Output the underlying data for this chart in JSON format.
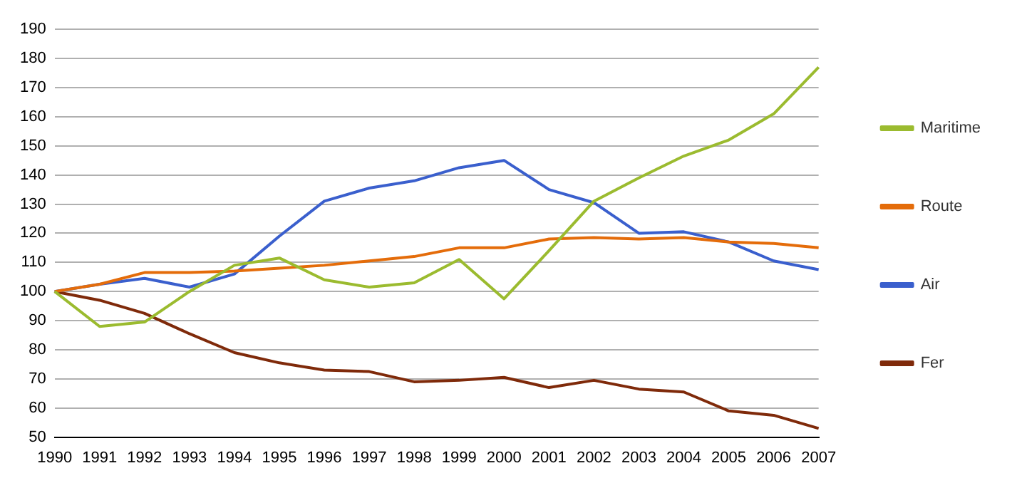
{
  "chart_data": {
    "type": "line",
    "categories": [
      "1990",
      "1991",
      "1992",
      "1993",
      "1994",
      "1995",
      "1996",
      "1997",
      "1998",
      "1999",
      "2000",
      "2001",
      "2002",
      "2003",
      "2004",
      "2005",
      "2006",
      "2007"
    ],
    "series": [
      {
        "name": "Maritime",
        "color": "#9bbb2f",
        "values": [
          100,
          88,
          89.5,
          100,
          109,
          111.5,
          104,
          101.5,
          103,
          111,
          97.5,
          114,
          131,
          139,
          146.5,
          152,
          161,
          177
        ]
      },
      {
        "name": "Route",
        "color": "#e46c0a",
        "values": [
          100,
          102.5,
          106.5,
          106.5,
          107,
          108,
          109,
          110.5,
          112,
          115,
          115,
          118,
          118.5,
          118,
          118.5,
          117,
          116.5,
          115
        ]
      },
      {
        "name": "Air",
        "color": "#3a5fcd",
        "values": [
          100,
          102.5,
          104.5,
          101.5,
          106,
          119,
          131,
          135.5,
          138,
          142.5,
          145,
          135,
          130.5,
          120,
          120.5,
          117,
          110.5,
          107.5
        ]
      },
      {
        "name": "Fer",
        "color": "#7f2a0a",
        "values": [
          100,
          97,
          92.5,
          85.5,
          79,
          75.5,
          73,
          72.5,
          69,
          69.5,
          70.5,
          67,
          69.5,
          66.5,
          65.5,
          59,
          57.5,
          53
        ]
      }
    ],
    "ylim": [
      50,
      190
    ],
    "yticks": [
      50,
      60,
      70,
      80,
      90,
      100,
      110,
      120,
      130,
      140,
      150,
      160,
      170,
      180,
      190
    ],
    "grid": "y",
    "legend": "right",
    "marker": "none",
    "line_style": "solid"
  }
}
